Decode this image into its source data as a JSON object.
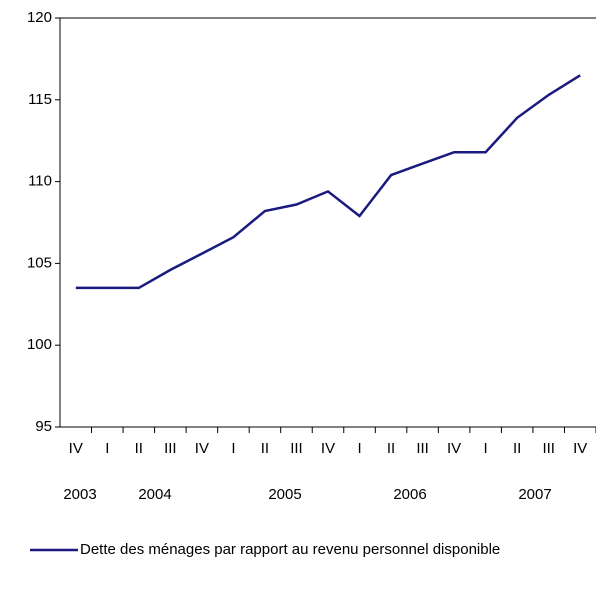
{
  "chart_data": {
    "type": "line",
    "categories": [
      "IV",
      "I",
      "II",
      "III",
      "IV",
      "I",
      "II",
      "III",
      "IV",
      "I",
      "II",
      "III",
      "IV",
      "I",
      "II",
      "III",
      "IV"
    ],
    "year_labels": [
      "2003",
      "2004",
      "2005",
      "2006",
      "2007"
    ],
    "series": [
      {
        "name": "Dette des ménages par rapport au revenu personnel disponible",
        "color": "#1a1a80",
        "values": [
          103.5,
          103.5,
          103.5,
          104.6,
          105.6,
          106.6,
          108.2,
          108.6,
          109.4,
          107.9,
          110.4,
          111.1,
          111.8,
          111.8,
          113.9,
          115.3,
          116.5
        ]
      }
    ],
    "ylim": [
      95,
      120
    ],
    "yticks": [
      95,
      100,
      105,
      110,
      115,
      120
    ]
  }
}
